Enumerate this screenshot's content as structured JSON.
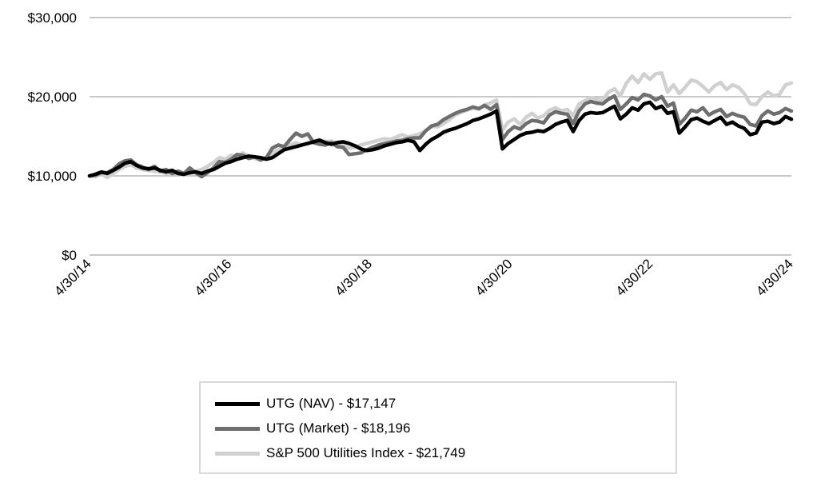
{
  "chart_data": {
    "type": "line",
    "y_tick_labels": [
      "$0",
      "$10,000",
      "$20,000",
      "$30,000"
    ],
    "y_tick_values": [
      0,
      10000,
      20000,
      30000
    ],
    "ylim": [
      0,
      30000
    ],
    "x_tick_labels": [
      "4/30/14",
      "4/30/16",
      "4/30/18",
      "4/30/20",
      "4/30/22",
      "4/30/24"
    ],
    "x_range": [
      "2014-04-30",
      "2024-04-30"
    ],
    "grid": true,
    "legend_position": "bottom",
    "series": [
      {
        "name": "UTG (NAV) - $17,147",
        "color": "#000000",
        "values": [
          10000,
          10200,
          10500,
          10300,
          10700,
          11100,
          11600,
          11800,
          11300,
          11000,
          10900,
          11000,
          10700,
          10500,
          10700,
          10300,
          10200,
          10400,
          10500,
          10300,
          10600,
          10800,
          11200,
          11600,
          11800,
          12100,
          12300,
          12500,
          12400,
          12300,
          12100,
          12300,
          12800,
          13300,
          13500,
          13700,
          13900,
          14100,
          14300,
          14500,
          14200,
          14000,
          14200,
          14300,
          14100,
          13800,
          13400,
          13200,
          13300,
          13500,
          13800,
          14000,
          14200,
          14300,
          14500,
          14300,
          13200,
          14000,
          14600,
          15000,
          15500,
          15800,
          16000,
          16300,
          16600,
          17000,
          17200,
          17500,
          17800,
          18200,
          13400,
          14100,
          14600,
          15100,
          15400,
          15500,
          15700,
          15600,
          16000,
          16500,
          16800,
          17000,
          15600,
          17000,
          17800,
          18000,
          17900,
          18000,
          18400,
          18800,
          17200,
          17800,
          18600,
          18300,
          19100,
          19300,
          18500,
          18800,
          17900,
          18100,
          15400,
          16200,
          17100,
          17300,
          16900,
          16600,
          17000,
          17400,
          16500,
          16800,
          16300,
          16000,
          15200,
          15400,
          16800,
          16900,
          16600,
          16800,
          17500,
          17147
        ]
      },
      {
        "name": "UTG (Market) - $18,196",
        "color": "#6e6e6e",
        "values": [
          10000,
          10100,
          10400,
          10400,
          10800,
          11500,
          11900,
          12000,
          11400,
          11100,
          10800,
          11200,
          10600,
          10800,
          10300,
          10600,
          10300,
          11000,
          10400,
          9900,
          10400,
          11000,
          11800,
          11700,
          12100,
          12700,
          12600,
          12200,
          12400,
          12000,
          12300,
          13500,
          13900,
          13700,
          14600,
          15400,
          15000,
          15300,
          14200,
          14000,
          13900,
          14200,
          13700,
          13600,
          12700,
          12800,
          12900,
          13300,
          13600,
          13900,
          14100,
          14200,
          14400,
          14500,
          14700,
          14800,
          14800,
          15700,
          16300,
          16500,
          17100,
          17500,
          17900,
          18200,
          18400,
          18700,
          18500,
          18900,
          18400,
          19000,
          14600,
          15600,
          16200,
          15900,
          16600,
          17000,
          16900,
          16700,
          17700,
          18100,
          17900,
          17800,
          16600,
          18200,
          19100,
          19400,
          19200,
          19100,
          19700,
          20100,
          18400,
          19100,
          19900,
          19600,
          20300,
          20100,
          19600,
          20000,
          18800,
          19200,
          16500,
          17300,
          18300,
          18100,
          18600,
          17700,
          18100,
          18400,
          17500,
          17900,
          17600,
          17400,
          16500,
          16300,
          17600,
          18200,
          17800,
          18000,
          18500,
          18196
        ]
      },
      {
        "name": "S&P 500 Utilities Index - $21,749",
        "color": "#d0d0d0",
        "values": [
          10000,
          9900,
          10200,
          9800,
          10300,
          10800,
          11200,
          11400,
          11000,
          10800,
          10700,
          10600,
          10500,
          10300,
          10400,
          10200,
          10100,
          10300,
          10600,
          10800,
          11200,
          11700,
          12300,
          12100,
          12600,
          12400,
          12900,
          12500,
          12200,
          12000,
          12300,
          12900,
          13300,
          13600,
          13900,
          14200,
          13900,
          14100,
          14400,
          14600,
          14300,
          14400,
          14100,
          13800,
          13500,
          13600,
          13900,
          14100,
          14300,
          14500,
          14700,
          14600,
          14900,
          15200,
          14900,
          15100,
          15300,
          15700,
          16300,
          16200,
          16600,
          17100,
          17700,
          18000,
          18300,
          18600,
          18400,
          19000,
          19200,
          19600,
          15800,
          16800,
          17200,
          16500,
          17400,
          17900,
          17300,
          17600,
          18300,
          18600,
          18200,
          18400,
          17600,
          19100,
          19500,
          19900,
          19700,
          19600,
          20600,
          21000,
          20100,
          21700,
          22600,
          21800,
          22900,
          22200,
          22900,
          23000,
          20600,
          21500,
          20400,
          21200,
          22100,
          21900,
          21300,
          20600,
          21400,
          21800,
          20900,
          21500,
          21200,
          20400,
          19100,
          19000,
          20000,
          20600,
          20100,
          20300,
          21500,
          21749
        ]
      }
    ]
  }
}
